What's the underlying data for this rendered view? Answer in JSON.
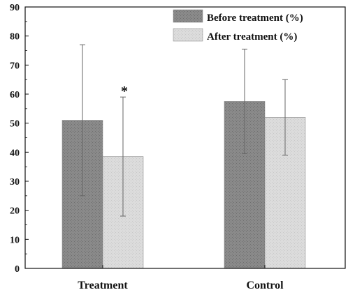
{
  "chart_data": {
    "type": "bar",
    "title": "",
    "xlabel": "",
    "ylabel": "",
    "categories": [
      "Treatment",
      "Control"
    ],
    "ylim": [
      0,
      90
    ],
    "yticks": [
      0,
      10,
      20,
      30,
      40,
      50,
      60,
      70,
      80,
      90
    ],
    "grid": false,
    "legend_position": "top-right",
    "series": [
      {
        "name": "Before treatment (%)",
        "values": [
          51,
          57.5
        ],
        "errors": [
          26,
          18
        ],
        "color": "#8c8c8c"
      },
      {
        "name": "After treatment (%)",
        "values": [
          38.5,
          52
        ],
        "errors": [
          20.5,
          13
        ],
        "color": "#d9d9d9"
      }
    ],
    "annotations": [
      {
        "text": "*",
        "category": "Treatment",
        "series": "After treatment (%)"
      }
    ]
  }
}
